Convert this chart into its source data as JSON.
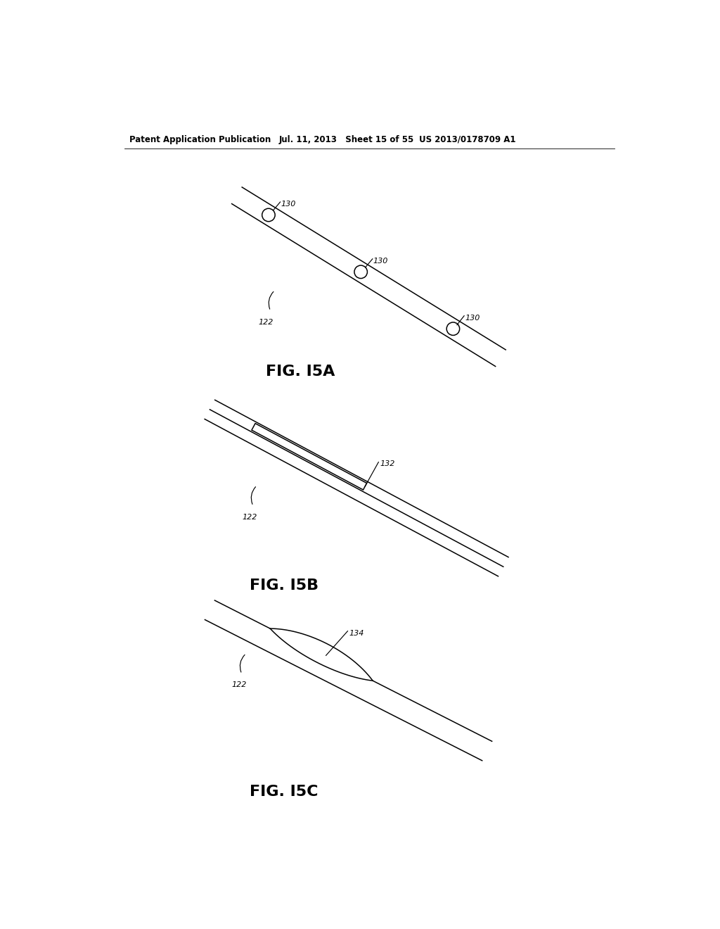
{
  "bg_color": "#ffffff",
  "header_left": "Patent Application Publication",
  "header_mid": "Jul. 11, 2013   Sheet 15 of 55",
  "header_right": "US 2013/0178709 A1",
  "fig15a_label": "FIG. I5A",
  "fig15b_label": "FIG. I5B",
  "fig15c_label": "FIG. I5C",
  "label_122": "122",
  "label_130": "130",
  "label_132": "132",
  "label_134": "134",
  "line_color": "#000000",
  "lw_strip": 1.1,
  "lw_thin": 0.85
}
